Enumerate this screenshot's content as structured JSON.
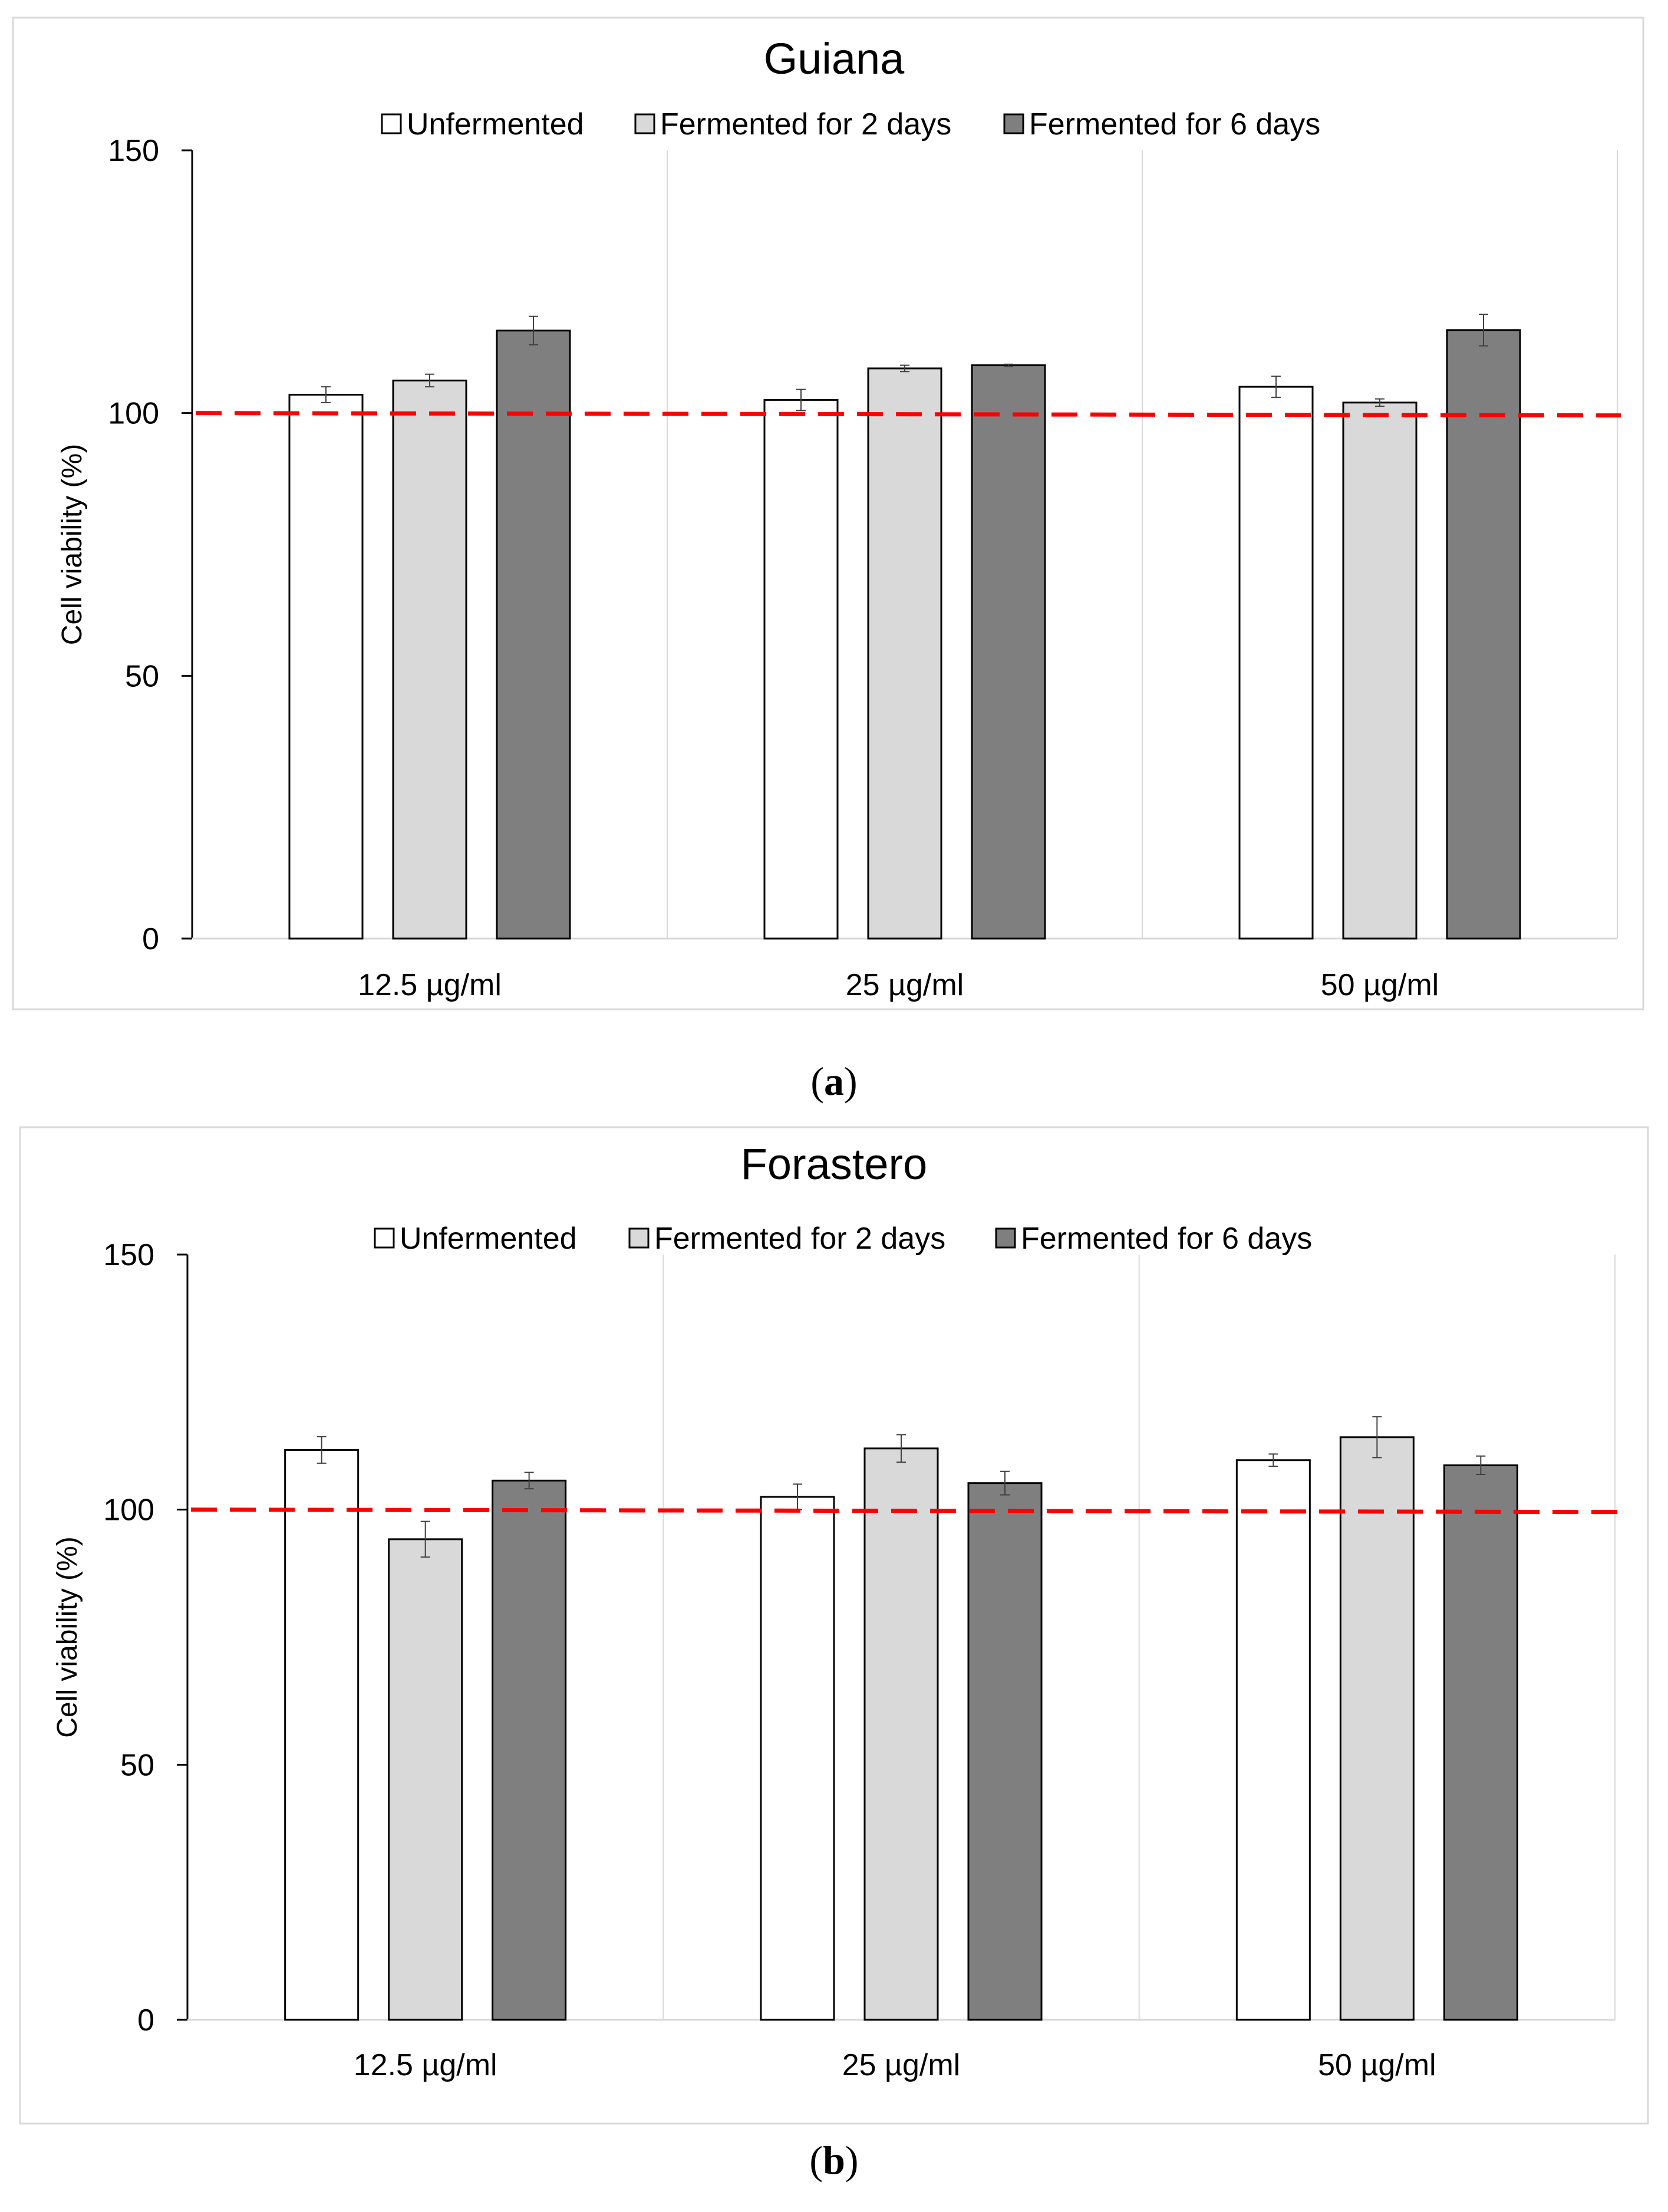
{
  "chart_data": [
    {
      "type": "bar",
      "panel_label": "a",
      "title": "Guiana",
      "xlabel": "",
      "ylabel": "Cell viability (%)",
      "ylim": [
        0,
        150
      ],
      "yticks": [
        "0",
        "50",
        "100",
        "150"
      ],
      "categories": [
        "12.5 µg/ml",
        "25 µg/ml",
        "50 µg/ml"
      ],
      "series": [
        {
          "name": "Unfermented",
          "color": "#ffffff",
          "values": [
            103.5,
            102.5,
            105
          ],
          "errors": [
            1.5,
            2,
            2
          ]
        },
        {
          "name": "Fermented for 2 days",
          "color": "#d9d9d9",
          "values": [
            106.2,
            108.5,
            102
          ],
          "errors": [
            1.2,
            0.6,
            0.7
          ]
        },
        {
          "name": "Fermented for 6 days",
          "color": "#7f7f7f",
          "values": [
            115.7,
            109.1,
            115.8
          ],
          "errors": [
            2.7,
            0.2,
            3
          ]
        }
      ],
      "reference_line": {
        "value": 100,
        "color": "#ff0000",
        "style": "dashed"
      },
      "legend_position": "top-center",
      "grid": "vertical category separators"
    },
    {
      "type": "bar",
      "panel_label": "b",
      "title": "Forastero",
      "xlabel": "",
      "ylabel": "Cell viability (%)",
      "ylim": [
        0,
        150
      ],
      "yticks": [
        "0",
        "50",
        "100",
        "150"
      ],
      "categories": [
        "12.5 µg/ml",
        "25 µg/ml",
        "50 µg/ml"
      ],
      "series": [
        {
          "name": "Unfermented",
          "color": "#ffffff",
          "values": [
            111.7,
            102.5,
            109.7
          ],
          "errors": [
            2.6,
            2.5,
            1.2
          ]
        },
        {
          "name": "Fermented for 2 days",
          "color": "#d9d9d9",
          "values": [
            94.2,
            112,
            114.2
          ],
          "errors": [
            3.5,
            2.7,
            4
          ]
        },
        {
          "name": "Fermented for 6 days",
          "color": "#7f7f7f",
          "values": [
            105.7,
            105.2,
            108.7
          ],
          "errors": [
            1.6,
            2.3,
            1.8
          ]
        }
      ],
      "reference_line": {
        "value": 100,
        "color": "#ff0000",
        "style": "dashed"
      },
      "legend_position": "top-center",
      "grid": "vertical category separators"
    }
  ]
}
